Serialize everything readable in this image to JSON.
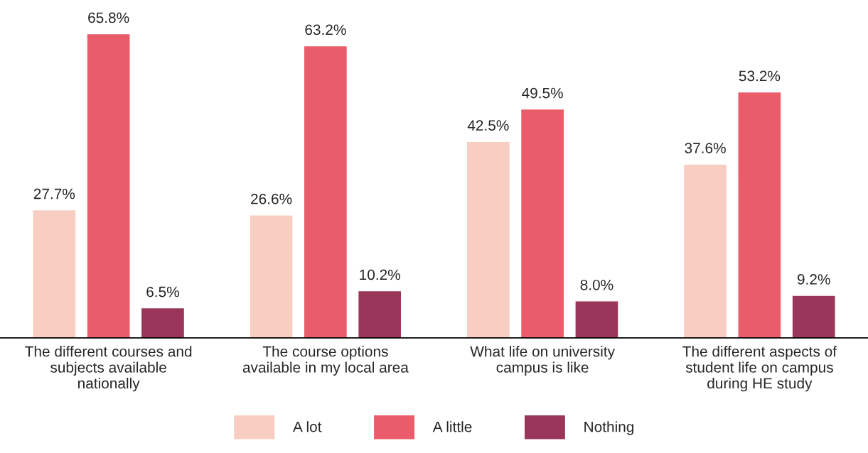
{
  "chart_data": {
    "type": "bar",
    "categories": [
      "The different courses and\nsubjects available\nnationally",
      "The course options\navailable in my local area",
      "What life on university\ncampus is like",
      "The different aspects of\nstudent life on campus\nduring HE study"
    ],
    "series": [
      {
        "name": "A lot",
        "color": "#f9cec2",
        "values": [
          27.7,
          26.6,
          42.5,
          37.6
        ],
        "value_labels": [
          "27.7%",
          "26.6%",
          "42.5%",
          "37.6%"
        ]
      },
      {
        "name": "A little",
        "color": "#e95c6a",
        "values": [
          65.8,
          63.2,
          49.5,
          53.2
        ],
        "value_labels": [
          "65.8%",
          "63.2%",
          "49.5%",
          "53.2%"
        ]
      },
      {
        "name": "Nothing",
        "color": "#99365a",
        "values": [
          6.5,
          10.2,
          8.0,
          9.2
        ],
        "value_labels": [
          "6.5%",
          "10.2%",
          "8.0%",
          "9.2%"
        ]
      }
    ],
    "legend": "bottom",
    "grid": false
  }
}
